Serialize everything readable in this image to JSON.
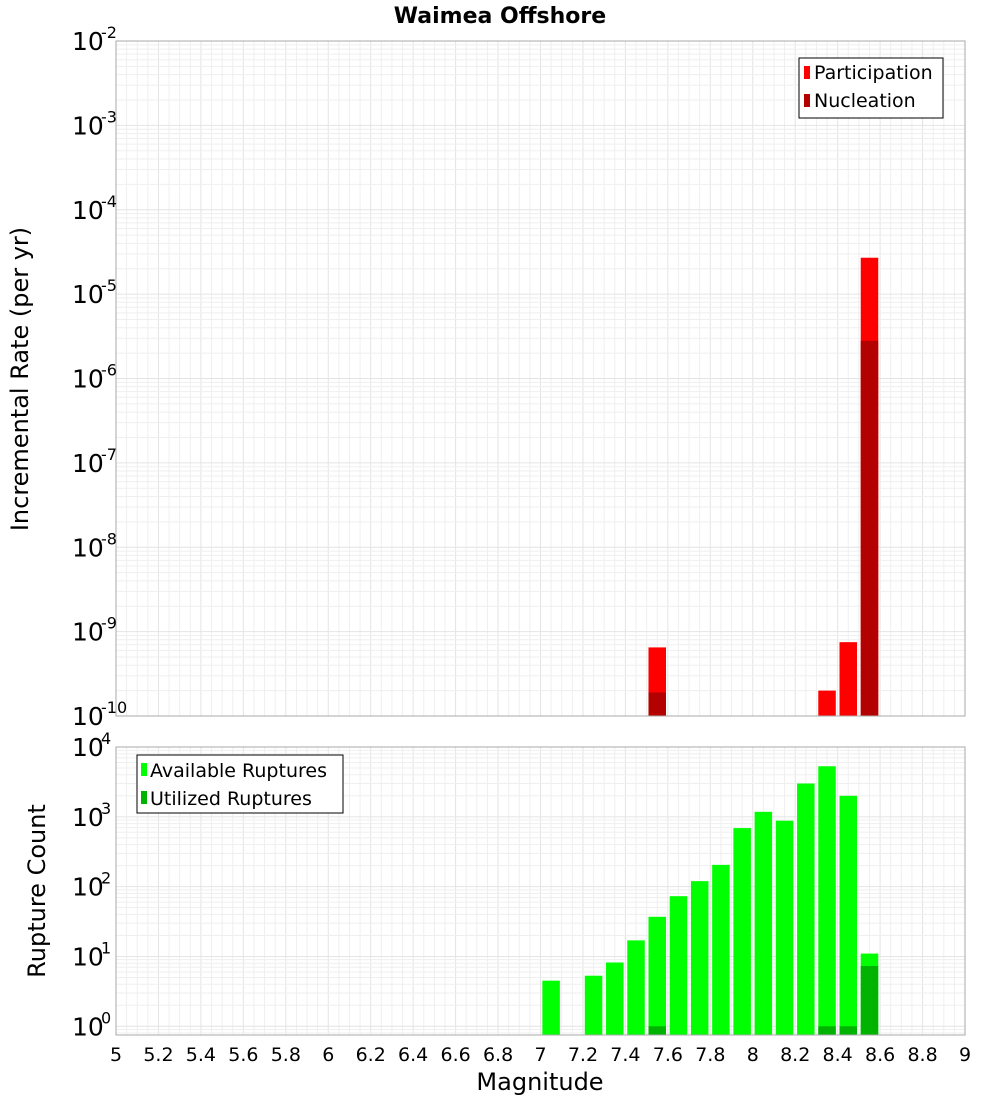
{
  "chart_data": [
    {
      "type": "bar",
      "title": "Waimea Offshore",
      "xlabel": "",
      "ylabel": "Incremental Rate (per yr)",
      "yscale": "log",
      "xlim": [
        5,
        9
      ],
      "ylim": [
        1e-10,
        0.01
      ],
      "y_ticks": [
        {
          "base": "10",
          "exp": "-2",
          "value": 0.01
        },
        {
          "base": "10",
          "exp": "-3",
          "value": 0.001
        },
        {
          "base": "10",
          "exp": "-4",
          "value": 0.0001
        },
        {
          "base": "10",
          "exp": "-5",
          "value": 1e-05
        },
        {
          "base": "10",
          "exp": "-6",
          "value": 1e-06
        },
        {
          "base": "10",
          "exp": "-7",
          "value": 1e-07
        },
        {
          "base": "10",
          "exp": "-8",
          "value": 1e-08
        },
        {
          "base": "10",
          "exp": "-9",
          "value": 1e-09
        },
        {
          "base": "10",
          "exp": "-10",
          "value": 1e-10
        }
      ],
      "legend_position": "top-right",
      "series": [
        {
          "name": "Participation",
          "color": "#ff0000",
          "x": [
            7.55,
            8.35,
            8.45,
            8.55
          ],
          "values": [
            6.5e-10,
            2e-10,
            7.5e-10,
            2.7e-05
          ]
        },
        {
          "name": "Nucleation",
          "color": "#b30000",
          "x": [
            7.55,
            8.55
          ],
          "values": [
            1.9e-10,
            2.8e-06
          ]
        }
      ]
    },
    {
      "type": "bar",
      "title": "",
      "xlabel": "Magnitude",
      "ylabel": "Rupture Count",
      "yscale": "log",
      "xlim": [
        5,
        9
      ],
      "ylim": [
        0.75,
        10000
      ],
      "x_ticks": [
        "5",
        "5.2",
        "5.4",
        "5.6",
        "5.8",
        "6",
        "6.2",
        "6.4",
        "6.6",
        "6.8",
        "7",
        "7.2",
        "7.4",
        "7.6",
        "7.8",
        "8",
        "8.2",
        "8.4",
        "8.6",
        "8.8",
        "9"
      ],
      "y_ticks": [
        {
          "base": "10",
          "exp": "4",
          "value": 10000
        },
        {
          "base": "10",
          "exp": "3",
          "value": 1000
        },
        {
          "base": "10",
          "exp": "2",
          "value": 100
        },
        {
          "base": "10",
          "exp": "1",
          "value": 10
        },
        {
          "base": "10",
          "exp": "0",
          "value": 1
        }
      ],
      "legend_position": "top-left",
      "series": [
        {
          "name": "Available Ruptures",
          "color": "#00ff00",
          "x": [
            7.05,
            7.25,
            7.35,
            7.45,
            7.55,
            7.65,
            7.75,
            7.85,
            7.95,
            8.05,
            8.15,
            8.25,
            8.35,
            8.45,
            8.55
          ],
          "values": [
            4.5,
            5.3,
            8.2,
            17,
            37,
            73,
            120,
            205,
            690,
            1180,
            880,
            3000,
            5300,
            2000,
            11
          ]
        },
        {
          "name": "Utilized Ruptures",
          "color": "#00b300",
          "x": [
            7.55,
            8.35,
            8.45,
            8.55
          ],
          "values": [
            1,
            1,
            1,
            7.3
          ]
        }
      ]
    }
  ]
}
